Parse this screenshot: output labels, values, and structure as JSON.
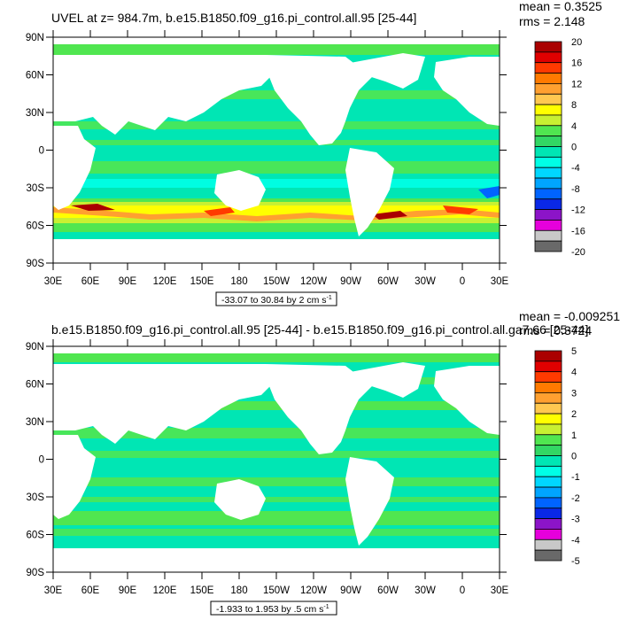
{
  "chart_data": [
    {
      "type": "heatmap",
      "title": "UVEL at z= 984.7m, b.e15.B1850.f09_g16.pi_control.all.95 [25-44]",
      "stats": {
        "mean": "mean = 0.3525",
        "rms": "rms = 2.148"
      },
      "range_label": "-33.07 to 30.84 by 2 cm s",
      "range_sup": "-1",
      "x_ticks": [
        "30E",
        "60E",
        "90E",
        "120E",
        "150E",
        "180",
        "150W",
        "120W",
        "90W",
        "60W",
        "30W",
        "0",
        "30E"
      ],
      "y_ticks": [
        "90N",
        "60N",
        "30N",
        "0",
        "30S",
        "60S",
        "90S"
      ],
      "colorbar_labels": [
        "20",
        "16",
        "12",
        "8",
        "4",
        "0",
        "-4",
        "-8",
        "-12",
        "-16",
        "-20"
      ],
      "colorbar_colors": [
        "#aa0000",
        "#e00000",
        "#ff3a00",
        "#ff7a00",
        "#ffa030",
        "#ffc850",
        "#ffff00",
        "#c8f032",
        "#50e650",
        "#32d764",
        "#00e6b4",
        "#00ffe6",
        "#00d7ff",
        "#00a5ff",
        "#0064ff",
        "#0a28e6",
        "#8c14c8",
        "#e600dc",
        "#c8c8c8",
        "#696969"
      ]
    },
    {
      "type": "heatmap",
      "title": "b.e15.B1850.f09_g16.pi_control.all.95 [25-44] - b.e15.B1850.f09_g16.pi_control.all.ga7.66 [25-44]",
      "stats": {
        "mean": "mean = -0.009251",
        "rms": "rms = 0.3724"
      },
      "range_label": "-1.933 to 1.953 by .5 cm s",
      "range_sup": "-1",
      "x_ticks": [
        "30E",
        "60E",
        "90E",
        "120E",
        "150E",
        "180",
        "150W",
        "120W",
        "90W",
        "60W",
        "30W",
        "0",
        "30E"
      ],
      "y_ticks": [
        "90N",
        "60N",
        "30N",
        "0",
        "30S",
        "60S",
        "90S"
      ],
      "colorbar_labels": [
        "5",
        "4",
        "3",
        "2",
        "1",
        "0",
        "-1",
        "-2",
        "-3",
        "-4",
        "-5"
      ],
      "colorbar_colors": [
        "#aa0000",
        "#e00000",
        "#ff3a00",
        "#ff7a00",
        "#ffa030",
        "#ffc850",
        "#ffff00",
        "#c8f032",
        "#50e650",
        "#32d764",
        "#00e6b4",
        "#00ffe6",
        "#00d7ff",
        "#00a5ff",
        "#0064ff",
        "#0a28e6",
        "#8c14c8",
        "#e600dc",
        "#c8c8c8",
        "#696969"
      ]
    }
  ]
}
